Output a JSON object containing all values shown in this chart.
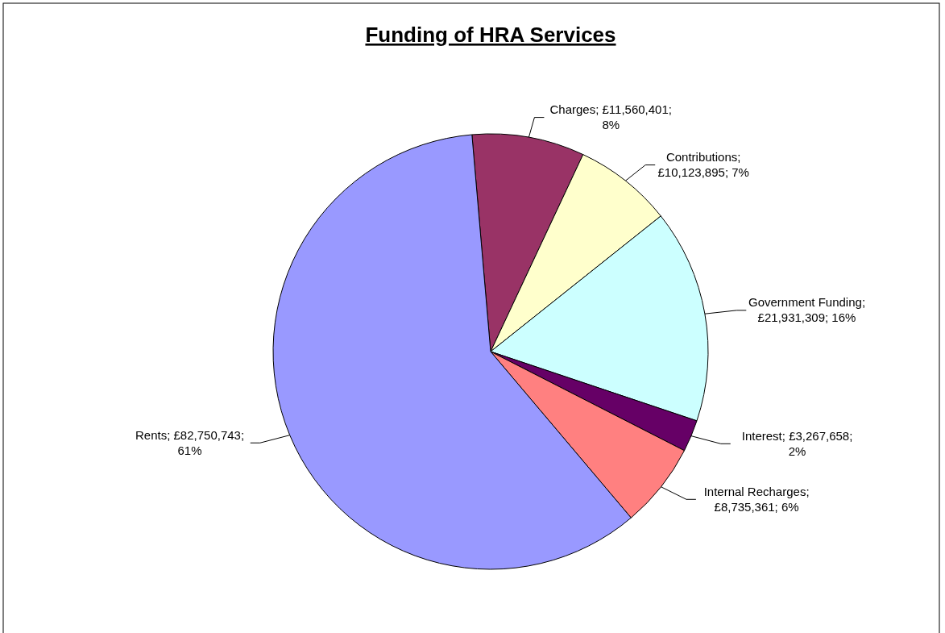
{
  "chart_data": {
    "type": "pie",
    "title": "Funding of HRA Services",
    "categories": [
      "Charges",
      "Contributions",
      "Government Funding",
      "Interest",
      "Internal Recharges",
      "Rents"
    ],
    "values": [
      11560401,
      10123895,
      21931309,
      3267658,
      8735361,
      82750743
    ],
    "colors": [
      "#993366",
      "#ffffcc",
      "#ccffff",
      "#660066",
      "#ff8080",
      "#9999ff"
    ],
    "value_labels": [
      "; £11,560,401; 8%",
      "; £10,123,895; 7%",
      "; £21,931,309; 16%",
      "; £3,267,658; 2%",
      "; £8,735,361; 6%",
      "; £82,750,743; 61%"
    ]
  }
}
